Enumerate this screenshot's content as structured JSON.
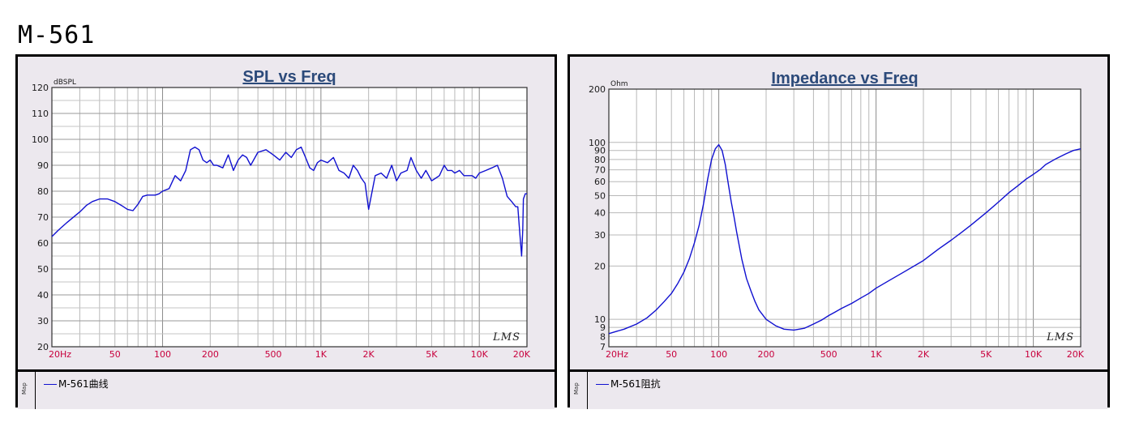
{
  "page": {
    "title": "M-561"
  },
  "chart_data": [
    {
      "type": "line",
      "title": "SPL vs Freq",
      "ylabel": "dBSPL",
      "xlabel": "",
      "x_scale": "log",
      "xlim": [
        20,
        20000
      ],
      "ylim": [
        20,
        120
      ],
      "grid": true,
      "x_tick_labels": [
        "20Hz",
        "50",
        "100",
        "200",
        "500",
        "1K",
        "2K",
        "5K",
        "10K",
        "20K"
      ],
      "y_tick_labels": [
        "20",
        "30",
        "40",
        "50",
        "60",
        "70",
        "80",
        "90",
        "100",
        "110",
        "120"
      ],
      "watermark": "LMS",
      "series": [
        {
          "name": "M-561曲线",
          "color": "#1010d0",
          "x": [
            20,
            22,
            25,
            28,
            30,
            33,
            36,
            40,
            45,
            50,
            55,
            60,
            65,
            70,
            75,
            80,
            85,
            90,
            95,
            100,
            110,
            120,
            130,
            140,
            150,
            160,
            170,
            180,
            190,
            200,
            210,
            220,
            240,
            260,
            280,
            300,
            320,
            340,
            360,
            400,
            450,
            500,
            550,
            600,
            650,
            700,
            750,
            800,
            850,
            900,
            950,
            1000,
            1100,
            1200,
            1300,
            1400,
            1500,
            1600,
            1700,
            1800,
            1900,
            2000,
            2200,
            2400,
            2600,
            2800,
            3000,
            3200,
            3500,
            3700,
            4000,
            4300,
            4600,
            5000,
            5300,
            5600,
            6000,
            6300,
            6700,
            7000,
            7500,
            8000,
            8500,
            9000,
            9500,
            10000,
            11000,
            12000,
            13000,
            14000,
            15000,
            16000,
            17000,
            17500,
            18000,
            18500,
            18800,
            19000,
            19500,
            20000
          ],
          "y": [
            62.5,
            65,
            68,
            70.5,
            72,
            74.5,
            76,
            77,
            77,
            76,
            74.5,
            73,
            72.5,
            75,
            78,
            78.5,
            78.5,
            78.5,
            79,
            80,
            81,
            86,
            84,
            88,
            96,
            97,
            96,
            92,
            91,
            92,
            90,
            90,
            89,
            94,
            88,
            92,
            94,
            93,
            90,
            95,
            96,
            94,
            92,
            95,
            93,
            96,
            97,
            93,
            89,
            88,
            91,
            92,
            91,
            93,
            88,
            87,
            85,
            90,
            88,
            85,
            83,
            73,
            86,
            87,
            85,
            90,
            84,
            87,
            88,
            93,
            88,
            85,
            88,
            84,
            85,
            86,
            90,
            88,
            88,
            87,
            88,
            86,
            86,
            86,
            85,
            87,
            88,
            89,
            90,
            85,
            78,
            76,
            74,
            74,
            64,
            55,
            65,
            77,
            79,
            79
          ]
        }
      ]
    },
    {
      "type": "line",
      "title": "Impedance vs Freq",
      "ylabel": "Ohm",
      "xlabel": "",
      "x_scale": "log",
      "y_scale": "log",
      "xlim": [
        20,
        20000
      ],
      "ylim": [
        7,
        200
      ],
      "grid": true,
      "x_tick_labels": [
        "20Hz",
        "50",
        "100",
        "200",
        "500",
        "1K",
        "2K",
        "5K",
        "10K",
        "20K"
      ],
      "y_tick_labels": [
        "7",
        "8",
        "9",
        "10",
        "20",
        "30",
        "40",
        "50",
        "60",
        "70",
        "80",
        "90",
        "100",
        "200"
      ],
      "watermark": "LMS",
      "series": [
        {
          "name": "M-561阻抗",
          "color": "#1010d0",
          "x": [
            20,
            25,
            30,
            35,
            40,
            45,
            50,
            55,
            60,
            65,
            70,
            75,
            80,
            85,
            90,
            95,
            100,
            105,
            110,
            115,
            120,
            125,
            130,
            135,
            140,
            150,
            160,
            170,
            180,
            200,
            230,
            260,
            300,
            350,
            400,
            450,
            500,
            550,
            600,
            700,
            800,
            900,
            1000,
            1200,
            1500,
            2000,
            2500,
            3000,
            3500,
            4000,
            5000,
            6000,
            7000,
            8000,
            9000,
            10000,
            11000,
            12000,
            14000,
            16000,
            18000,
            20000
          ],
          "y": [
            8.3,
            8.8,
            9.4,
            10.2,
            11.3,
            12.6,
            14,
            16,
            18.5,
            22,
            27,
            34,
            45,
            62,
            80,
            92,
            97,
            90,
            75,
            58,
            46,
            38,
            31,
            26,
            22,
            17,
            14.5,
            12.6,
            11.3,
            10,
            9.2,
            8.8,
            8.7,
            8.9,
            9.4,
            9.9,
            10.5,
            11,
            11.5,
            12.3,
            13.2,
            14,
            15,
            16.5,
            18.5,
            21.5,
            25,
            28,
            31,
            34,
            40,
            46,
            52,
            57,
            62,
            66,
            70,
            75,
            81,
            86,
            90,
            92
          ]
        }
      ]
    }
  ]
}
